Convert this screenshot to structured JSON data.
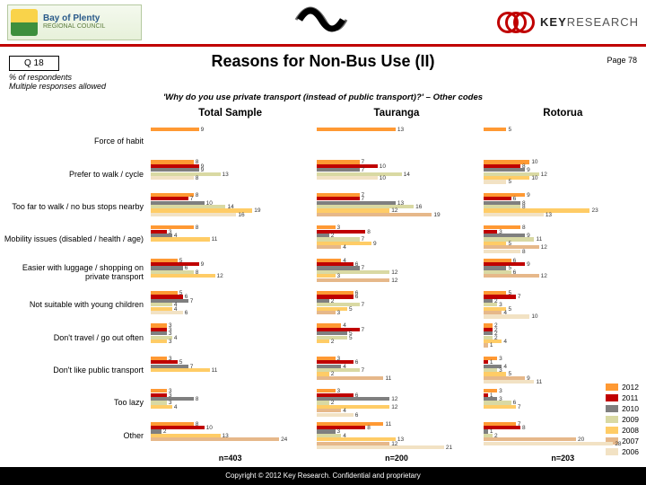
{
  "header": {
    "bop_line1": "Bay of Plenty",
    "bop_line2": "REGIONAL COUNCIL",
    "kr_prefix": "KEY",
    "kr_suffix": "RESEARCH"
  },
  "meta": {
    "q": "Q 18",
    "page": "Page 78",
    "title": "Reasons for Non-Bus Use (II)",
    "sub1": "% of respondents\nMultiple responses allowed",
    "sub2": "'Why do you use private transport (instead of public transport)?' – Other codes"
  },
  "years": [
    "2012",
    "2011",
    "2010",
    "2009",
    "2008",
    "2007",
    "2006"
  ],
  "year_colors": {
    "2012": "#ff9933",
    "2011": "#c00000",
    "2010": "#7f7f7f",
    "2009": "#d9d9a3",
    "2008": "#ffcc66",
    "2007": "#e6b88a",
    "2006": "#f2e2c4"
  },
  "categories": [
    "Force of habit",
    "Prefer to walk / cycle",
    "Too far to walk / no bus stops nearby",
    "Mobility issues (disabled / health / age)",
    "Easier with luggage / shopping on private transport",
    "Not suitable with young children",
    "Don't travel / go out often",
    "Don't like public transport",
    "Too lazy",
    "Other"
  ],
  "panels": [
    {
      "title": "Total Sample",
      "n": "n=403",
      "max": 26,
      "data": [
        [
          9,
          null,
          null,
          null,
          null,
          null,
          null
        ],
        [
          8,
          9,
          9,
          13,
          null,
          null,
          8
        ],
        [
          8,
          7,
          10,
          14,
          19,
          null,
          16
        ],
        [
          8,
          3,
          4,
          null,
          11,
          null,
          null
        ],
        [
          5,
          9,
          6,
          8,
          12,
          null,
          null
        ],
        [
          5,
          6,
          7,
          4,
          4,
          null,
          6
        ],
        [
          3,
          3,
          3,
          4,
          3,
          null,
          null
        ],
        [
          3,
          5,
          7,
          null,
          11,
          null,
          null
        ],
        [
          3,
          3,
          8,
          3,
          4,
          null,
          null
        ],
        [
          8,
          10,
          2,
          null,
          13,
          24,
          null
        ]
      ]
    },
    {
      "title": "Tauranga",
      "n": "n=200",
      "max": 23,
      "data": [
        [
          13,
          null,
          null,
          null,
          null,
          null,
          null
        ],
        [
          7,
          10,
          7,
          14,
          null,
          null,
          10
        ],
        [
          7,
          7,
          13,
          16,
          12,
          19,
          null
        ],
        [
          3,
          8,
          2,
          7,
          9,
          4,
          null
        ],
        [
          4,
          6,
          7,
          12,
          3,
          12,
          null
        ],
        [
          6,
          6,
          2,
          7,
          5,
          3,
          null
        ],
        [
          4,
          7,
          5,
          5,
          2,
          null,
          null
        ],
        [
          3,
          6,
          4,
          7,
          2,
          11,
          null
        ],
        [
          3,
          6,
          12,
          2,
          12,
          4,
          6
        ],
        [
          11,
          8,
          3,
          4,
          13,
          12,
          21
        ]
      ]
    },
    {
      "title": "Rotorua",
      "n": "n=203",
      "max": 30,
      "data": [
        [
          5,
          null,
          null,
          null,
          null,
          null,
          null
        ],
        [
          10,
          8,
          9,
          12,
          10,
          null,
          5
        ],
        [
          9,
          6,
          8,
          8,
          23,
          null,
          13
        ],
        [
          8,
          3,
          9,
          11,
          5,
          12,
          8
        ],
        [
          6,
          9,
          5,
          6,
          null,
          12,
          null
        ],
        [
          5,
          7,
          2,
          3,
          5,
          4,
          10
        ],
        [
          2,
          2,
          2,
          2,
          4,
          1,
          null
        ],
        [
          3,
          1,
          4,
          3,
          5,
          9,
          11
        ],
        [
          3,
          1,
          3,
          6,
          7,
          null,
          null
        ],
        [
          7,
          8,
          1,
          2,
          null,
          20,
          28
        ]
      ]
    }
  ],
  "footer": "Copyright © 2012 Key Research. Confidential and proprietary"
}
